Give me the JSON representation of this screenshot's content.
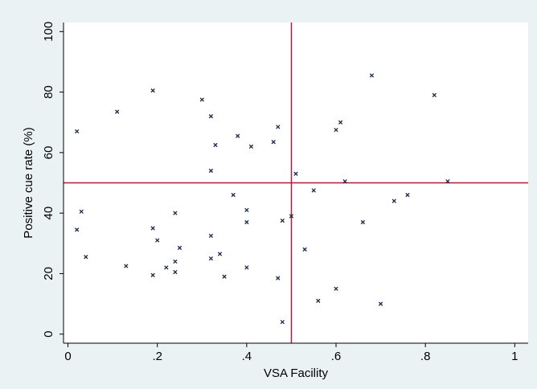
{
  "chart_data": {
    "type": "scatter",
    "title": "",
    "xlabel": "VSA Facility",
    "ylabel": "Positive cue rate (%)",
    "xlim": [
      -0.01,
      1.03
    ],
    "ylim": [
      -3,
      103
    ],
    "xticks": [
      0,
      0.2,
      0.4,
      0.6,
      0.8,
      1
    ],
    "xtick_labels": [
      "0",
      ".2",
      ".4",
      ".6",
      ".8",
      "1"
    ],
    "yticks": [
      0,
      20,
      40,
      60,
      80,
      100
    ],
    "ytick_labels": [
      "0",
      "20",
      "40",
      "60",
      "80",
      "100"
    ],
    "grid": false,
    "legend": "none",
    "reference_lines": {
      "vertical_x": 0.5,
      "horizontal_y": 50
    },
    "colors": {
      "outer_background": "#eaf2f3",
      "plot_background": "#ffffff",
      "marker": "#1a2b4a",
      "reference_line": "#b0193a",
      "axis": "#000000"
    },
    "points": [
      {
        "x": 0.02,
        "y": 67
      },
      {
        "x": 0.02,
        "y": 34.5
      },
      {
        "x": 0.03,
        "y": 40.5
      },
      {
        "x": 0.04,
        "y": 25.5
      },
      {
        "x": 0.11,
        "y": 73.5
      },
      {
        "x": 0.13,
        "y": 22.5
      },
      {
        "x": 0.19,
        "y": 80.5
      },
      {
        "x": 0.19,
        "y": 35
      },
      {
        "x": 0.2,
        "y": 31
      },
      {
        "x": 0.19,
        "y": 19.5
      },
      {
        "x": 0.22,
        "y": 22
      },
      {
        "x": 0.24,
        "y": 40
      },
      {
        "x": 0.24,
        "y": 24
      },
      {
        "x": 0.24,
        "y": 20.5
      },
      {
        "x": 0.25,
        "y": 28.5
      },
      {
        "x": 0.3,
        "y": 77.5
      },
      {
        "x": 0.32,
        "y": 72
      },
      {
        "x": 0.33,
        "y": 62.5
      },
      {
        "x": 0.32,
        "y": 54
      },
      {
        "x": 0.32,
        "y": 32.5
      },
      {
        "x": 0.32,
        "y": 25
      },
      {
        "x": 0.34,
        "y": 26.5
      },
      {
        "x": 0.35,
        "y": 19
      },
      {
        "x": 0.37,
        "y": 46
      },
      {
        "x": 0.38,
        "y": 65.5
      },
      {
        "x": 0.4,
        "y": 41
      },
      {
        "x": 0.4,
        "y": 37
      },
      {
        "x": 0.4,
        "y": 22
      },
      {
        "x": 0.41,
        "y": 62
      },
      {
        "x": 0.46,
        "y": 63.5
      },
      {
        "x": 0.47,
        "y": 68.5
      },
      {
        "x": 0.47,
        "y": 18.5
      },
      {
        "x": 0.48,
        "y": 37.5
      },
      {
        "x": 0.48,
        "y": 4
      },
      {
        "x": 0.5,
        "y": 39
      },
      {
        "x": 0.51,
        "y": 53
      },
      {
        "x": 0.53,
        "y": 28
      },
      {
        "x": 0.55,
        "y": 47.5
      },
      {
        "x": 0.56,
        "y": 11
      },
      {
        "x": 0.6,
        "y": 67.5
      },
      {
        "x": 0.61,
        "y": 70
      },
      {
        "x": 0.6,
        "y": 15
      },
      {
        "x": 0.62,
        "y": 50.5
      },
      {
        "x": 0.66,
        "y": 37
      },
      {
        "x": 0.68,
        "y": 85.5
      },
      {
        "x": 0.7,
        "y": 10
      },
      {
        "x": 0.73,
        "y": 44
      },
      {
        "x": 0.76,
        "y": 46
      },
      {
        "x": 0.82,
        "y": 79
      },
      {
        "x": 0.85,
        "y": 50.5
      }
    ]
  }
}
